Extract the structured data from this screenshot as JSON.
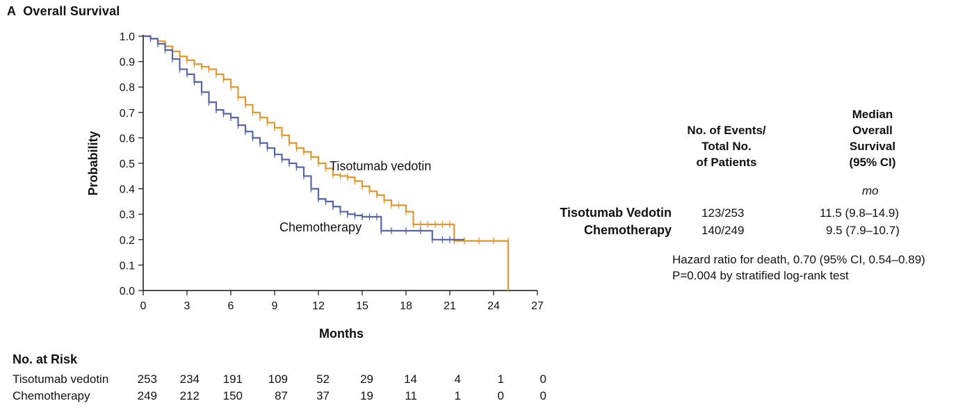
{
  "panel": {
    "letter": "A",
    "title": "Overall Survival"
  },
  "colors": {
    "tisotumab": "#e0962a",
    "chemo": "#5564a8",
    "axis": "#111111"
  },
  "chart_data": {
    "type": "line",
    "subtype": "kaplan-meier-step",
    "xlabel": "Months",
    "ylabel": "Probability",
    "xlim": [
      0,
      27
    ],
    "ylim": [
      0,
      1.0
    ],
    "x_ticks": [
      0,
      3,
      6,
      9,
      12,
      15,
      18,
      21,
      24,
      27
    ],
    "y_ticks": [
      "0.0",
      "0.1",
      "0.2",
      "0.3",
      "0.4",
      "0.5",
      "0.6",
      "0.7",
      "0.8",
      "0.9",
      "1.0"
    ],
    "grid": false,
    "series": [
      {
        "name": "Tisotumab vedotin",
        "color": "#e0962a",
        "x": [
          0,
          0.5,
          1.0,
          1.5,
          2.0,
          2.5,
          3.0,
          3.5,
          4.0,
          4.5,
          5.0,
          5.5,
          6.0,
          6.5,
          7.0,
          7.5,
          8.0,
          8.5,
          9.0,
          9.5,
          10.0,
          10.5,
          11.0,
          11.5,
          12.0,
          12.5,
          13.0,
          13.5,
          14.0,
          14.5,
          15.0,
          15.5,
          16.0,
          16.5,
          17.0,
          17.5,
          18.0,
          18.5,
          19.0,
          19.5,
          20.0,
          20.5,
          21.0,
          21.3,
          22.0,
          23.0,
          24.0,
          25.0,
          25.0
        ],
        "y": [
          1.0,
          0.99,
          0.98,
          0.96,
          0.94,
          0.92,
          0.905,
          0.89,
          0.88,
          0.87,
          0.85,
          0.83,
          0.8,
          0.76,
          0.73,
          0.7,
          0.68,
          0.66,
          0.64,
          0.61,
          0.58,
          0.56,
          0.545,
          0.525,
          0.5,
          0.48,
          0.455,
          0.45,
          0.445,
          0.43,
          0.41,
          0.39,
          0.375,
          0.355,
          0.335,
          0.335,
          0.31,
          0.26,
          0.26,
          0.26,
          0.26,
          0.26,
          0.26,
          0.195,
          0.195,
          0.195,
          0.195,
          0.195,
          0.0
        ],
        "label": "Tisotumab vedotin"
      },
      {
        "name": "Chemotherapy",
        "color": "#5564a8",
        "x": [
          0,
          0.5,
          1.0,
          1.5,
          2.0,
          2.5,
          3.0,
          3.5,
          4.0,
          4.5,
          5.0,
          5.5,
          6.0,
          6.5,
          7.0,
          7.5,
          8.0,
          8.5,
          9.0,
          9.5,
          10.0,
          10.5,
          11.0,
          11.5,
          12.0,
          12.5,
          13.0,
          13.5,
          14.0,
          14.5,
          15.0,
          15.5,
          16.0,
          16.3,
          17.0,
          18.0,
          19.0,
          19.8,
          20.5,
          21.0,
          22.0
        ],
        "y": [
          1.0,
          0.99,
          0.97,
          0.945,
          0.91,
          0.87,
          0.85,
          0.82,
          0.78,
          0.74,
          0.71,
          0.695,
          0.68,
          0.65,
          0.625,
          0.6,
          0.58,
          0.56,
          0.535,
          0.515,
          0.5,
          0.485,
          0.45,
          0.4,
          0.36,
          0.35,
          0.33,
          0.31,
          0.3,
          0.295,
          0.29,
          0.29,
          0.29,
          0.235,
          0.235,
          0.235,
          0.235,
          0.2,
          0.2,
          0.2,
          0.2
        ],
        "label": "Chemotherapy"
      }
    ],
    "annotations": [
      "Tisotumab vedotin",
      "Chemotherapy"
    ]
  },
  "summary": {
    "col_events": [
      "No. of Events/",
      "Total No.",
      "of Patients"
    ],
    "col_median": [
      "Median",
      "Overall",
      "Survival",
      "(95% CI)"
    ],
    "unit": "mo",
    "rows": [
      {
        "name": "Tisotumab Vedotin",
        "events": "123/253",
        "median": "11.5 (9.8–14.9)"
      },
      {
        "name": "Chemotherapy",
        "events": "140/249",
        "median": "9.5 (7.9–10.7)"
      }
    ],
    "hazard": "Hazard ratio for death, 0.70 (95% CI, 0.54–0.89)",
    "pvalue": "P=0.004 by stratified log-rank test"
  },
  "risk": {
    "title": "No. at Risk",
    "rows": [
      {
        "name": "Tisotumab vedotin",
        "values": [
          "253",
          "234",
          "191",
          "109",
          "52",
          "29",
          "14",
          "4",
          "1",
          "0"
        ]
      },
      {
        "name": "Chemotherapy",
        "values": [
          "249",
          "212",
          "150",
          "87",
          "37",
          "19",
          "11",
          "1",
          "0",
          "0"
        ]
      }
    ]
  }
}
